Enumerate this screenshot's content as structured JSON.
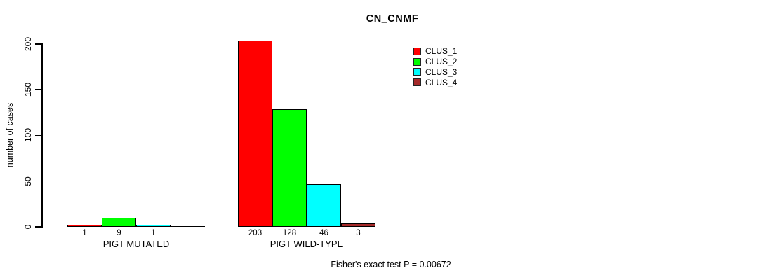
{
  "title": "CN_CNMF",
  "footer": "Fisher's exact test P = 0.00672",
  "chart_data": {
    "type": "bar",
    "title": "CN_CNMF",
    "xlabel": "",
    "ylabel": "number of cases",
    "ylim": [
      0,
      200
    ],
    "yticks": [
      0,
      50,
      100,
      150,
      200
    ],
    "grid": false,
    "legend_position": "top-right",
    "categories": [
      "PIGT MUTATED",
      "PIGT WILD-TYPE"
    ],
    "series": [
      {
        "name": "CLUS_1",
        "color": "#FF0000",
        "values": [
          1,
          203
        ]
      },
      {
        "name": "CLUS_2",
        "color": "#00FF00",
        "values": [
          9,
          128
        ]
      },
      {
        "name": "CLUS_3",
        "color": "#00FFFF",
        "values": [
          1,
          46
        ]
      },
      {
        "name": "CLUS_4",
        "color": "#A52A2A",
        "values": [
          0,
          3
        ]
      }
    ],
    "bar_value_labels": {
      "PIGT MUTATED": [
        1,
        9,
        1,
        null
      ],
      "PIGT WILD-TYPE": [
        203,
        128,
        46,
        3
      ]
    },
    "annotation": "Fisher's exact test P = 0.00672"
  }
}
